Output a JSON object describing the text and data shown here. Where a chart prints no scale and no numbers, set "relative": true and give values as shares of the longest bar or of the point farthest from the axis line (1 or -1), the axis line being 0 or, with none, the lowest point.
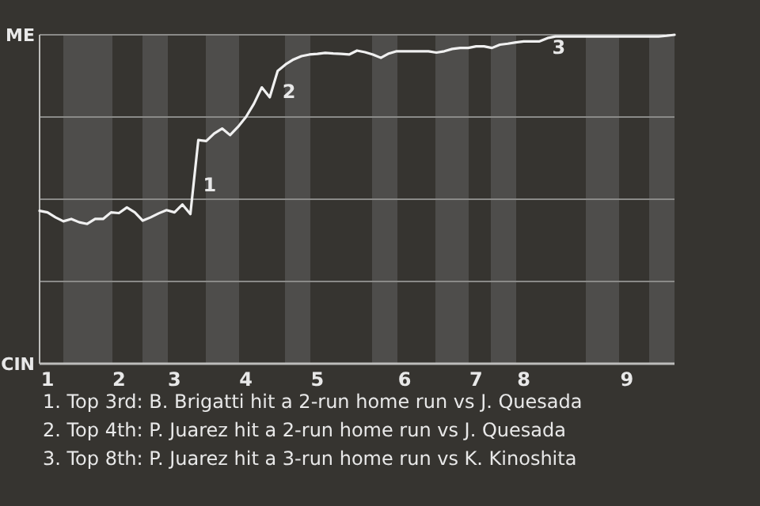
{
  "chart_data": {
    "type": "line",
    "relative": true,
    "categories": [
      null,
      "1",
      null,
      null,
      null,
      null,
      null,
      null,
      null,
      null,
      "2",
      null,
      null,
      null,
      null,
      null,
      null,
      "3",
      null,
      null,
      null,
      null,
      null,
      null,
      null,
      null,
      "4",
      null,
      null,
      null,
      null,
      null,
      null,
      null,
      null,
      "5",
      null,
      null,
      null,
      null,
      null,
      null,
      null,
      null,
      null,
      null,
      "6",
      null,
      null,
      null,
      null,
      null,
      null,
      null,
      null,
      "7",
      null,
      null,
      null,
      null,
      null,
      "8",
      null,
      null,
      null,
      null,
      null,
      null,
      null,
      null,
      null,
      null,
      null,
      null,
      "9",
      null,
      null,
      null,
      null,
      null,
      null
    ],
    "series": [
      {
        "color": "#f0f0f0",
        "values": [
          0.465,
          0.46,
          0.445,
          0.433,
          0.44,
          0.43,
          0.425,
          0.44,
          0.44,
          0.46,
          0.458,
          0.475,
          0.46,
          0.435,
          0.445,
          0.457,
          0.467,
          0.46,
          0.484,
          0.455,
          0.68,
          0.677,
          0.7,
          0.715,
          0.695,
          0.72,
          0.75,
          0.79,
          0.84,
          0.81,
          0.89,
          0.91,
          0.925,
          0.935,
          0.94,
          0.942,
          0.945,
          0.943,
          0.942,
          0.94,
          0.952,
          0.947,
          0.94,
          0.93,
          0.943,
          0.95,
          0.95,
          0.95,
          0.95,
          0.95,
          0.946,
          0.95,
          0.957,
          0.96,
          0.96,
          0.965,
          0.965,
          0.96,
          0.97,
          0.973,
          0.977,
          0.98,
          0.98,
          0.98,
          0.99,
          0.995,
          0.995,
          0.995,
          0.995,
          0.995,
          0.995,
          0.995,
          0.995,
          0.995,
          0.995,
          0.995,
          0.995,
          0.995,
          0.995,
          0.997,
          1
        ]
      }
    ],
    "grid": "y",
    "marker": "none",
    "line_style": "solid",
    "annotations": [
      "ME",
      "CIN",
      {
        "text": "1",
        "y": 0.68
      },
      {
        "text": "2",
        "y": 0.89
      },
      {
        "text": "3",
        "y": 0.99
      },
      "1. Top 3rd: B. Brigatti hit a 2-run home run vs J. Quesada",
      "2. Top 4th: P. Juarez hit a 2-run home run vs J. Quesada",
      "3. Top 8th: P. Juarez hit a 3-run home run vs K. Kinoshita"
    ]
  }
}
